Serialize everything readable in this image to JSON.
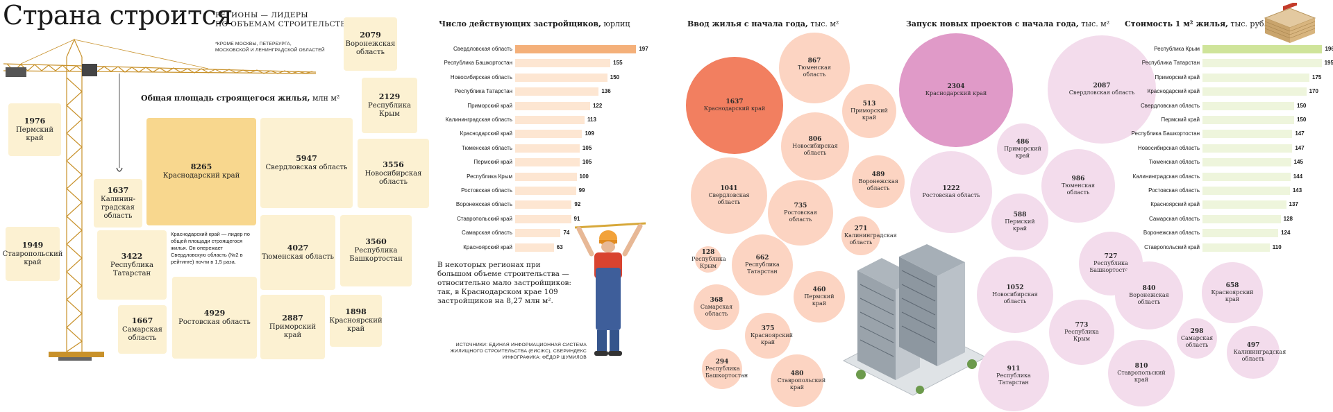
{
  "header": {
    "title": "Страна строится",
    "subtitle_line1": "РЕГИОНЫ — ЛИДЕРЫ",
    "subtitle_line2": "ПО ОБЪЕМАМ СТРОИТЕЛЬСТВА*",
    "footnote_line1": "*КРОМЕ МОСКВЫ, ПЕТЕРБУРГА,",
    "footnote_line2": "МОСКОВСКОЙ И ЛЕНИНГРАДСКОЙ ОБЛАСТЕЙ"
  },
  "area_section": {
    "title": "Общая площадь строящегося жилья,",
    "unit": "млн м²",
    "note": "Краснодарский край — лидер по общей площади строящегося жилья. Он опережает Свердловскую область (№2 в рейтинге) почти в 1,5 раза.",
    "colors": {
      "leader": "#f8d78e",
      "other": "#fcf1d2"
    }
  },
  "bars_section": {
    "title": "Число действующих застройщиков,",
    "unit": "юрлиц",
    "text": "В некоторых регионах при большом объеме строительства — относительно мало застройщиков: так, в Краснодарском крае 109 застройщиков на 8,27 млн м².",
    "colors": {
      "leader": "#f4b07a",
      "other": "#fde6d2"
    }
  },
  "bubbles1": {
    "title": "Ввод жилья с начала года,",
    "unit": "тыс. м²",
    "colors": {
      "leader": "#f27f60",
      "other": "#fcd4c2"
    }
  },
  "bubbles2": {
    "title": "Запуск новых проектов с начала года,",
    "unit": "тыс. м²",
    "colors": {
      "leader": "#e09ac8",
      "other": "#f3dcec"
    }
  },
  "cost_section": {
    "title": "Стоимость 1 м² жилья,",
    "unit": "тыс. руб.",
    "colors": {
      "leader": "#cfe49a",
      "other": "#eef5dc"
    }
  },
  "sources": {
    "line1": "ИСТОЧНИКИ: ЕДИНАЯ ИНФОРМАЦИОННАЯ СИСТЕМА",
    "line2": "ЖИЛИЩНОГО СТРОИТЕЛЬСТВА (ЕИСЖС), СБЕРИНДЕКС",
    "line3": "ИНФОГРАФИКА: ФЁДОР ШУМИЛОВ"
  },
  "chart_data": [
    {
      "type": "treemap",
      "title": "Общая площадь строящегося жилья, млн м²",
      "items": [
        {
          "value": "8265",
          "label": "Краснодарский край",
          "leader": true
        },
        {
          "value": "5947",
          "label": "Свердловская область"
        },
        {
          "value": "3556",
          "label": "Новосибирская область"
        },
        {
          "value": "4027",
          "label": "Тюменская область"
        },
        {
          "value": "3560",
          "label": "Республика Башкортостан"
        },
        {
          "value": "4929",
          "label": "Ростовская область"
        },
        {
          "value": "2887",
          "label": "Приморский край"
        },
        {
          "value": "1898",
          "label": "Красноярский край"
        },
        {
          "value": "2079",
          "label": "Воронежская область"
        },
        {
          "value": "2129",
          "label": "Республика Крым"
        },
        {
          "value": "1976",
          "label": "Пермский край"
        },
        {
          "value": "1637",
          "label": "Калинин-градская область"
        },
        {
          "value": "1949",
          "label": "Ставропольский край"
        },
        {
          "value": "3422",
          "label": "Республика Татарстан"
        },
        {
          "value": "1667",
          "label": "Самарская область"
        }
      ]
    },
    {
      "type": "bar",
      "title": "Число действующих застройщиков, юрлиц",
      "categories": [
        "Свердловская область",
        "Республика Башкортостан",
        "Новосибирская область",
        "Республика Татарстан",
        "Приморский край",
        "Калининградская область",
        "Краснодарский край",
        "Тюменская область",
        "Пермский край",
        "Республика Крым",
        "Ростовская область",
        "Воронежская область",
        "Ставропольский край",
        "Самарская область",
        "Красноярский край"
      ],
      "values": [
        197,
        155,
        150,
        136,
        122,
        113,
        109,
        105,
        105,
        100,
        99,
        92,
        91,
        74,
        63
      ]
    },
    {
      "type": "bubble",
      "title": "Ввод жилья с начала года, тыс. м²",
      "items": [
        {
          "value": "1637",
          "label": "Краснодарский край",
          "leader": true
        },
        {
          "value": "867",
          "label": "Тюменская область"
        },
        {
          "value": "513",
          "label": "Приморский край"
        },
        {
          "value": "806",
          "label": "Новосибирская область"
        },
        {
          "value": "1041",
          "label": "Свердловская область"
        },
        {
          "value": "489",
          "label": "Воронежская область"
        },
        {
          "value": "735",
          "label": "Ростовская область"
        },
        {
          "value": "271",
          "label": "Калининградская область"
        },
        {
          "value": "128",
          "label": "Республика Крым"
        },
        {
          "value": "662",
          "label": "Республика Татарстан"
        },
        {
          "value": "460",
          "label": "Пермский край"
        },
        {
          "value": "368",
          "label": "Самарская область"
        },
        {
          "value": "375",
          "label": "Красноярский край"
        },
        {
          "value": "294",
          "label": "Республика Башкортостан"
        },
        {
          "value": "480",
          "label": "Ставропольский край"
        }
      ]
    },
    {
      "type": "bubble",
      "title": "Запуск новых проектов с начала года, тыс. м²",
      "items": [
        {
          "value": "2304",
          "label": "Краснодарский край",
          "leader": true
        },
        {
          "value": "2087",
          "label": "Свердловская область"
        },
        {
          "value": "486",
          "label": "Приморский край"
        },
        {
          "value": "1222",
          "label": "Ростовская область"
        },
        {
          "value": "986",
          "label": "Тюменская область"
        },
        {
          "value": "588",
          "label": "Пермский край"
        },
        {
          "value": "727",
          "label": "Республика Башкортостан"
        },
        {
          "value": "1052",
          "label": "Новосибирская область"
        },
        {
          "value": "840",
          "label": "Воронежская область"
        },
        {
          "value": "658",
          "label": "Красноярский край"
        },
        {
          "value": "773",
          "label": "Республика Крым"
        },
        {
          "value": "298",
          "label": "Самарская область"
        },
        {
          "value": "497",
          "label": "Калининградская область"
        },
        {
          "value": "911",
          "label": "Республика Татарстан"
        },
        {
          "value": "810",
          "label": "Ставропольский край"
        }
      ]
    },
    {
      "type": "bar",
      "title": "Стоимость 1 м² жилья, тыс. руб.",
      "categories": [
        "Республика Крым",
        "Республика Татарстан",
        "Приморский край",
        "Краснодарский край",
        "Свердловская область",
        "Пермский край",
        "Республика Башкортостан",
        "Новосибирская область",
        "Тюменская область",
        "Калининградская область",
        "Ростовская область",
        "Красноярский край",
        "Самарская область",
        "Воронежская область",
        "Ставропольский край"
      ],
      "values": [
        196,
        195,
        175,
        170,
        150,
        150,
        147,
        147,
        145,
        144,
        143,
        137,
        128,
        124,
        110
      ]
    }
  ]
}
